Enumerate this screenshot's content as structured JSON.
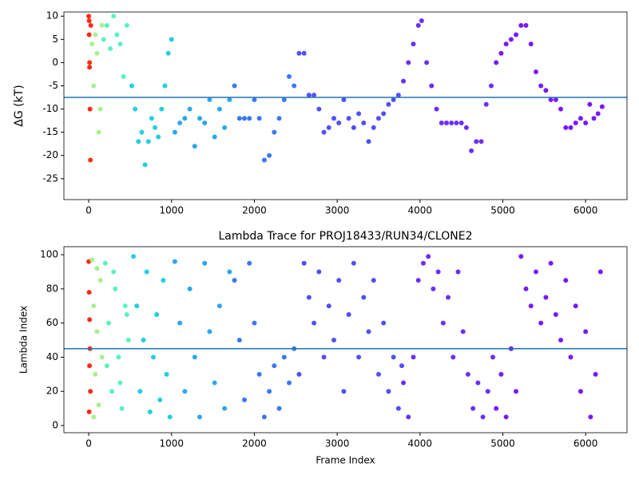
{
  "chart_data": [
    {
      "type": "scatter",
      "ylabel": "ΔG (kT)",
      "hline": -7.5,
      "hline_color": "#1f77b4",
      "xlim": [
        -300,
        6500
      ],
      "ylim": [
        -29.5,
        10.9
      ],
      "xticks": [
        0,
        1000,
        2000,
        3000,
        4000,
        5000,
        6000
      ],
      "yticks": [
        -25,
        -20,
        -15,
        -10,
        -5,
        0,
        5,
        10
      ],
      "series": [
        {
          "color": "#ff2a15",
          "x": [
            0,
            5,
            10,
            15,
            20,
            10,
            5,
            25
          ],
          "values": [
            10,
            6,
            0,
            -10,
            -21,
            -1,
            9,
            8
          ]
        },
        {
          "color": "#a8f090",
          "x": [
            40,
            60,
            80,
            100,
            120,
            140,
            160
          ],
          "values": [
            4,
            -5,
            6,
            2,
            -15,
            -10,
            8
          ]
        },
        {
          "color": "#5af2c4",
          "x": [
            180,
            220,
            260,
            300,
            340,
            380,
            420,
            460
          ],
          "values": [
            5,
            8,
            3,
            10,
            6,
            4,
            -3,
            8
          ]
        },
        {
          "color": "#20d0e0",
          "x": [
            520,
            560,
            600,
            640,
            680,
            720,
            760,
            800,
            840,
            880,
            920,
            960,
            1000
          ],
          "values": [
            -5,
            -10,
            -17,
            -15,
            -22,
            -17,
            -12,
            -14,
            -16,
            -10,
            -5,
            2,
            5
          ]
        },
        {
          "color": "#2aa8f0",
          "x": [
            1040,
            1100,
            1160,
            1220,
            1280,
            1340,
            1400,
            1460,
            1520,
            1580,
            1640,
            1700
          ],
          "values": [
            -15,
            -13,
            -12,
            -10,
            -18,
            -12,
            -13,
            -8,
            -16,
            -10,
            -14,
            -8
          ]
        },
        {
          "color": "#3a78f5",
          "x": [
            1760,
            1820,
            1880,
            1940,
            2000,
            2060,
            2120,
            2180,
            2240,
            2300,
            2360,
            2420,
            2480
          ],
          "values": [
            -5,
            -12,
            -12,
            -12,
            -8,
            -12,
            -21,
            -20,
            -15,
            -12,
            -8,
            -3,
            -5
          ]
        },
        {
          "color": "#5050fa",
          "x": [
            2540,
            2600,
            2660,
            2720,
            2780,
            2840,
            2900,
            2960,
            3020,
            3080,
            3140,
            3200,
            3260,
            3320,
            3380,
            3440,
            3500,
            3560,
            3620,
            3680,
            3740
          ],
          "values": [
            2,
            2,
            -7,
            -7,
            -10,
            -15,
            -14,
            -12,
            -13,
            -8,
            -12,
            -14,
            -11,
            -13,
            -17,
            -14,
            -12,
            -11,
            -9,
            -8,
            -7
          ]
        },
        {
          "color": "#6a30fc",
          "x": [
            3800,
            3860,
            3920,
            3980,
            4020,
            4080,
            4140,
            4200,
            4260,
            4320,
            4380,
            4440,
            4500,
            4560,
            4620,
            4680,
            4740,
            4800,
            4860
          ],
          "values": [
            -4,
            0,
            4,
            8,
            9,
            0,
            -5,
            -10,
            -13,
            -13,
            -13,
            -13,
            -13,
            -14,
            -19,
            -17,
            -17,
            -9,
            -5
          ]
        },
        {
          "color": "#7a18ff",
          "x": [
            4920,
            4980,
            5040,
            5100,
            5160,
            5220,
            5280,
            5340,
            5400,
            5460,
            5520,
            5580,
            5640,
            5700,
            5760,
            5820,
            5880,
            5940,
            6000,
            6050,
            6100,
            6150,
            6200
          ],
          "values": [
            0,
            2,
            4,
            5,
            6,
            8,
            8,
            4,
            -2,
            -5,
            -6,
            -8,
            -8,
            -10,
            -14,
            -14,
            -13,
            -12,
            -13,
            -9,
            -12,
            -11,
            -9.5
          ]
        }
      ]
    },
    {
      "type": "scatter",
      "title": "Lambda Trace for PROJ18433/RUN34/CLONE2",
      "xlabel": "Frame Index",
      "ylabel": "Lambda Index",
      "hline": 45,
      "hline_color": "#1f77b4",
      "xlim": [
        -300,
        6500
      ],
      "ylim": [
        -4.2,
        104.7
      ],
      "xticks": [
        0,
        1000,
        2000,
        3000,
        4000,
        5000,
        6000
      ],
      "yticks": [
        0,
        20,
        40,
        60,
        80,
        100
      ],
      "series": [
        {
          "color": "#ff2a15",
          "x": [
            0,
            5,
            10,
            15,
            20,
            5,
            10
          ],
          "values": [
            96,
            78,
            62,
            45,
            20,
            8,
            35
          ]
        },
        {
          "color": "#a8f090",
          "x": [
            40,
            60,
            80,
            100,
            120,
            140,
            160,
            60,
            100
          ],
          "values": [
            97,
            70,
            30,
            55,
            12,
            85,
            40,
            5,
            92
          ]
        },
        {
          "color": "#5af2c4",
          "x": [
            200,
            240,
            280,
            320,
            360,
            400,
            440,
            480,
            220,
            300,
            380,
            460
          ],
          "values": [
            95,
            60,
            20,
            80,
            40,
            10,
            70,
            50,
            35,
            90,
            25,
            65
          ]
        },
        {
          "color": "#20d0e0",
          "x": [
            540,
            580,
            620,
            660,
            700,
            740,
            780,
            820,
            860,
            900,
            940,
            980
          ],
          "values": [
            99,
            70,
            20,
            50,
            90,
            8,
            40,
            65,
            15,
            85,
            30,
            5
          ]
        },
        {
          "color": "#2aa8f0",
          "x": [
            1040,
            1100,
            1160,
            1220,
            1280,
            1340,
            1400,
            1460,
            1520,
            1580,
            1640,
            1700
          ],
          "values": [
            96,
            60,
            20,
            80,
            40,
            5,
            95,
            55,
            25,
            70,
            10,
            90
          ]
        },
        {
          "color": "#3a78f5",
          "x": [
            1760,
            1820,
            1880,
            1940,
            2000,
            2060,
            2120,
            2180,
            2240,
            2300,
            2360,
            2420,
            2480
          ],
          "values": [
            85,
            50,
            15,
            95,
            60,
            30,
            5,
            20,
            35,
            10,
            40,
            25,
            45
          ]
        },
        {
          "color": "#5050fa",
          "x": [
            2540,
            2600,
            2660,
            2720,
            2780,
            2840,
            2900,
            2960,
            3020,
            3080,
            3140,
            3200,
            3260,
            3320,
            3380,
            3440,
            3500,
            3560,
            3620,
            3680,
            3740,
            3780
          ],
          "values": [
            30,
            95,
            75,
            60,
            90,
            40,
            70,
            50,
            85,
            20,
            65,
            95,
            40,
            75,
            55,
            85,
            30,
            60,
            20,
            40,
            10,
            35
          ]
        },
        {
          "color": "#6a30fc",
          "x": [
            3800,
            3860,
            3920,
            3980,
            4040,
            4100,
            4160,
            4220,
            4280,
            4340,
            4400,
            4460,
            4520,
            4580,
            4640,
            4700,
            4760,
            4820,
            4880
          ],
          "values": [
            25,
            5,
            40,
            85,
            95,
            99,
            80,
            90,
            60,
            75,
            40,
            90,
            55,
            30,
            10,
            25,
            5,
            20,
            40
          ]
        },
        {
          "color": "#7a18ff",
          "x": [
            4920,
            4980,
            5040,
            5100,
            5160,
            5220,
            5280,
            5340,
            5400,
            5460,
            5520,
            5580,
            5640,
            5700,
            5760,
            5820,
            5880,
            5940,
            6000,
            6060,
            6120,
            6180
          ],
          "values": [
            10,
            30,
            5,
            45,
            20,
            99,
            80,
            70,
            90,
            60,
            75,
            95,
            65,
            50,
            85,
            40,
            70,
            20,
            55,
            5,
            30,
            90
          ]
        }
      ]
    }
  ]
}
